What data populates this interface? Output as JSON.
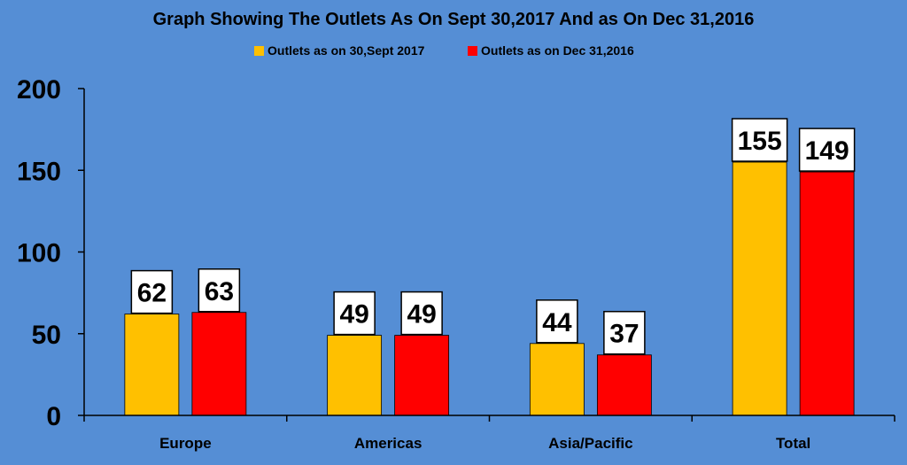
{
  "chart_data": {
    "type": "bar",
    "title": "Graph Showing The Outlets As On Sept 30,2017 And as On Dec 31,2016",
    "xlabel": "",
    "ylabel": "",
    "categories": [
      "Europe",
      "Americas",
      "Asia/Pacific",
      "Total"
    ],
    "series": [
      {
        "name": "Outlets as on 30,Sept 2017",
        "color": "#ffc000",
        "values": [
          62,
          49,
          44,
          155
        ]
      },
      {
        "name": "Outlets as on Dec 31,2016",
        "color": "#ff0000",
        "values": [
          63,
          49,
          37,
          149
        ]
      }
    ],
    "ylim": [
      0,
      200
    ],
    "yticks": [
      0,
      50,
      100,
      150,
      200
    ],
    "grid": false,
    "legend_position": "top-center",
    "data_labels": true,
    "background_color": "#558ed5"
  }
}
